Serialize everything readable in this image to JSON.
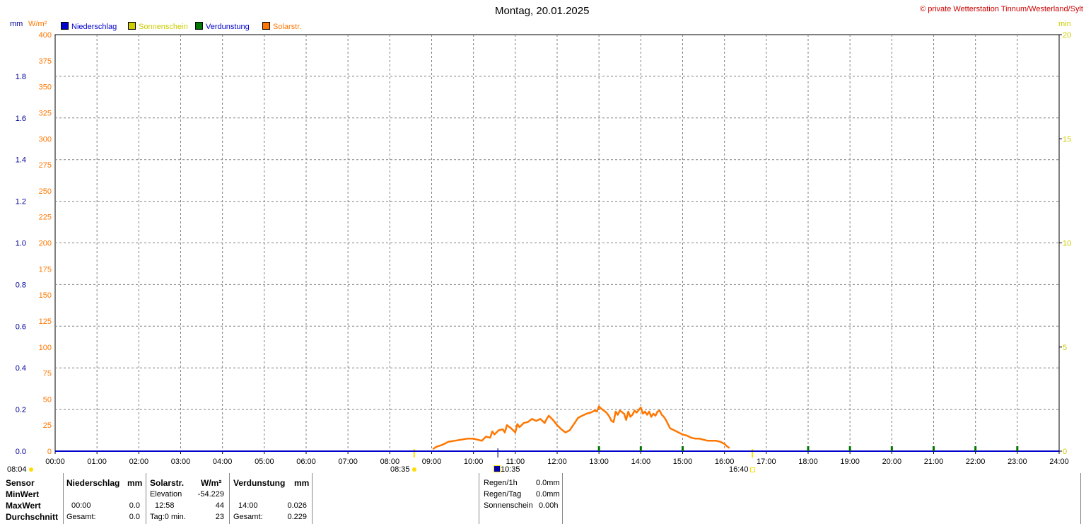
{
  "title": "Montag, 20.01.2025",
  "copyright": "© private Wetterstation Tinnum/Westerland/Sylt",
  "units": {
    "left_mm": "mm",
    "left_wm2": "W/m²",
    "right_min": "min"
  },
  "legend": [
    {
      "label": "Niederschlag",
      "color": "#0000cc"
    },
    {
      "label": "Sonnenschein",
      "color": "#cccc00"
    },
    {
      "label": "Verdunstung",
      "color": "#007700"
    },
    {
      "label": "Solarstr.",
      "color": "#ff7700"
    }
  ],
  "colors": {
    "grid": "#808080",
    "axis_left_mm": "#000099",
    "axis_left_wm2": "#ff7700",
    "axis_right": "#cccc00",
    "baseline": "#000099",
    "sun_marker": "#ffdd00"
  },
  "chart_data": {
    "type": "line",
    "title": "Montag, 20.01.2025",
    "xlim": [
      0,
      24
    ],
    "x_tick_labels": [
      "00:00",
      "01:00",
      "02:00",
      "03:00",
      "04:00",
      "05:00",
      "06:00",
      "07:00",
      "08:00",
      "09:00",
      "10:00",
      "11:00",
      "12:00",
      "13:00",
      "14:00",
      "15:00",
      "16:00",
      "17:00",
      "18:00",
      "19:00",
      "20:00",
      "21:00",
      "22:00",
      "23:00",
      "24:00"
    ],
    "axes": {
      "mm": {
        "range": [
          0,
          2.0
        ],
        "ticks": [
          "0.0",
          "0.2",
          "0.4",
          "0.6",
          "0.8",
          "1.0",
          "1.2",
          "1.4",
          "1.6",
          "1.8"
        ]
      },
      "wm2": {
        "range": [
          0,
          400
        ],
        "ticks": [
          "0",
          "25",
          "50",
          "75",
          "100",
          "125",
          "150",
          "175",
          "200",
          "225",
          "250",
          "275",
          "300",
          "325",
          "350",
          "375",
          "400"
        ]
      },
      "min": {
        "range": [
          0,
          20
        ],
        "ticks": [
          "0",
          "5",
          "10",
          "15",
          "20"
        ]
      }
    },
    "grid": true,
    "series": [
      {
        "name": "Solarstr.",
        "axis": "wm2",
        "color": "#ff7700",
        "x": [
          9.03,
          9.1,
          9.25,
          9.4,
          9.55,
          9.7,
          9.85,
          10.0,
          10.1,
          10.2,
          10.3,
          10.4,
          10.45,
          10.5,
          10.6,
          10.7,
          10.75,
          10.8,
          10.9,
          11.0,
          11.05,
          11.1,
          11.2,
          11.3,
          11.4,
          11.5,
          11.6,
          11.7,
          11.75,
          11.8,
          11.9,
          12.0,
          12.1,
          12.2,
          12.3,
          12.4,
          12.5,
          12.6,
          12.7,
          12.8,
          12.9,
          12.95,
          13.0,
          13.05,
          13.15,
          13.2,
          13.25,
          13.3,
          13.35,
          13.4,
          13.45,
          13.5,
          13.6,
          13.65,
          13.7,
          13.75,
          13.8,
          13.85,
          13.9,
          14.0,
          14.05,
          14.1,
          14.15,
          14.2,
          14.25,
          14.3,
          14.35,
          14.4,
          14.45,
          14.5,
          14.55,
          14.6,
          14.7,
          14.75,
          14.8,
          14.9,
          15.0,
          15.1,
          15.2,
          15.3,
          15.4,
          15.5,
          15.6,
          15.7,
          15.8,
          15.9,
          16.0,
          16.05,
          16.12
        ],
        "values": [
          2,
          4,
          6,
          9,
          10,
          11,
          12,
          12,
          11,
          10,
          14,
          13,
          19,
          16,
          20,
          21,
          18,
          25,
          22,
          18,
          26,
          23,
          27,
          28,
          31,
          29,
          31,
          27,
          31,
          34,
          30,
          25,
          21,
          18,
          20,
          26,
          32,
          34,
          36,
          37,
          39,
          38,
          43,
          41,
          38,
          36,
          33,
          29,
          28,
          38,
          35,
          39,
          36,
          30,
          38,
          33,
          35,
          39,
          37,
          42,
          36,
          38,
          35,
          38,
          33,
          36,
          34,
          38,
          39,
          35,
          33,
          30,
          22,
          21,
          20,
          18,
          16,
          15,
          13,
          12,
          12,
          11,
          10,
          10,
          10,
          9,
          7,
          5,
          3
        ]
      },
      {
        "name": "Niederschlag",
        "axis": "mm",
        "color": "#0000cc",
        "x": [
          0,
          24
        ],
        "values": [
          0,
          0
        ]
      }
    ],
    "verdunstung_marks_hours": [
      13,
      14,
      15,
      18,
      19,
      20,
      21,
      22,
      23
    ]
  },
  "sun": {
    "sunrise": "08:35",
    "sunset": "16:40",
    "civil_start": "08:04",
    "marker_time": "10:35"
  },
  "table": {
    "headers": {
      "sensor": "Sensor",
      "niederschlag": "Niederschlag",
      "mm1": "mm",
      "solar": "Solarstr.",
      "wm2": "W/m²",
      "verdunstung": "Verdunstung",
      "mm2": "mm"
    },
    "rows": {
      "min": {
        "label": "MinWert",
        "solar_time": "Elevation",
        "solar_value": "-54.229"
      },
      "max": {
        "label": "MaxWert",
        "nied_time": "00:00",
        "nied_value": "0.0",
        "solar_time": "12:58",
        "solar_value": "44",
        "verd_time": "14:00",
        "verd_value": "0.026"
      },
      "avg": {
        "label": "Durchschnitt",
        "nied_time": "Gesamt:",
        "nied_value": "0.0",
        "solar_time": "Tag:0 min.",
        "solar_value": "23",
        "verd_time": "Gesamt:",
        "verd_value": "0.229"
      }
    },
    "summary": [
      {
        "label": "Regen/1h",
        "value": "0.0mm"
      },
      {
        "label": "Regen/Tag",
        "value": "0.0mm"
      },
      {
        "label": "Sonnenschein",
        "value": "0.00h"
      }
    ]
  }
}
